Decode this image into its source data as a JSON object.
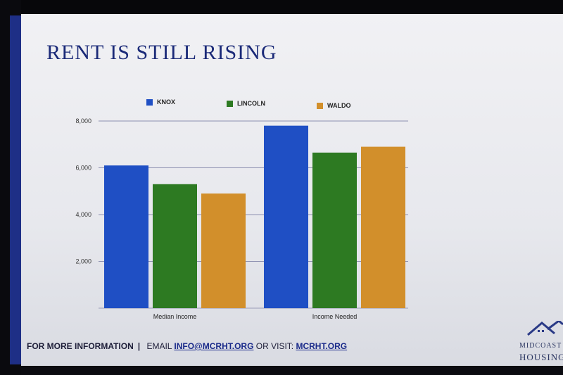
{
  "slide": {
    "title": "RENT IS STILL RISING",
    "footer": {
      "lead": "FOR MORE INFORMATION",
      "separator": "|",
      "email_prefix": "EMAIL",
      "email": "INFO@MCRHT.ORG",
      "visit_prefix": "OR VISIT:",
      "url": "MCRHT.ORG"
    },
    "logo": {
      "line1": "MIDCOAST",
      "line2": "HOUSING",
      "icon": "house-roofline-icon"
    }
  },
  "chart_data": {
    "type": "bar",
    "categories": [
      "Median Income",
      "Income Needed"
    ],
    "series": [
      {
        "name": "KNOX",
        "values": [
          6100,
          7800
        ],
        "color": "#1f4fc4"
      },
      {
        "name": "LINCOLN",
        "values": [
          5300,
          6650
        ],
        "color": "#2d7a22"
      },
      {
        "name": "WALDO",
        "values": [
          4900,
          6900
        ],
        "color": "#d28f2b"
      }
    ],
    "yticks": [
      "8,000",
      "6,000",
      "4,000",
      "2,000"
    ],
    "ytick_values": [
      8000,
      6000,
      4000,
      2000
    ],
    "ylim": [
      0,
      8000
    ],
    "grid": true,
    "legend": "top"
  }
}
